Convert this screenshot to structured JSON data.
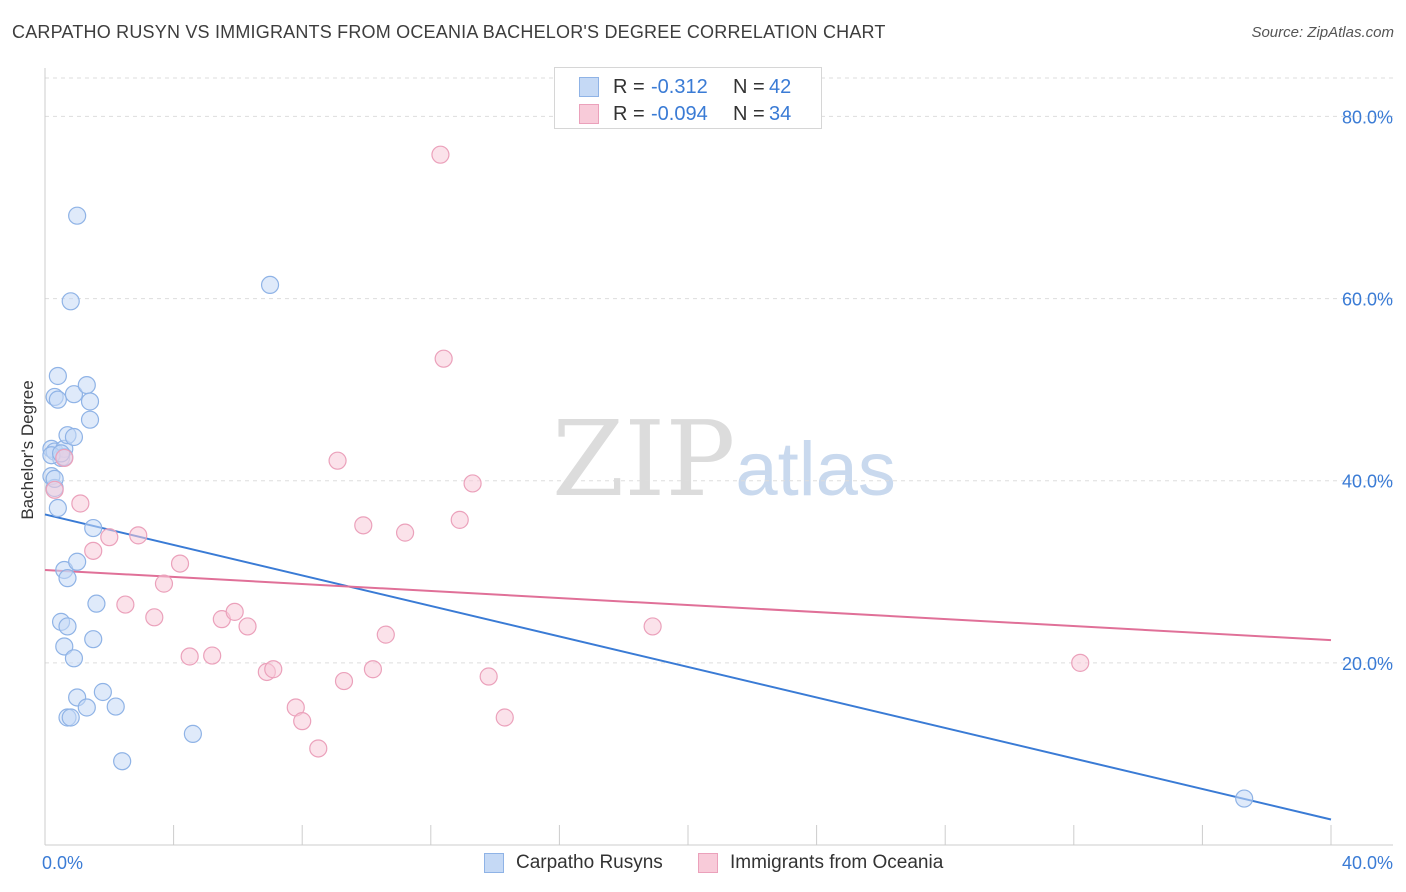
{
  "header": {
    "title": "CARPATHO RUSYN VS IMMIGRANTS FROM OCEANIA BACHELOR'S DEGREE CORRELATION CHART",
    "source": "Source: ZipAtlas.com"
  },
  "watermark": {
    "zip": "ZIP",
    "atlas": "atlas"
  },
  "legend_top": {
    "rows": [
      {
        "r_label": "R =",
        "r_value": "-0.312",
        "n_label": "N =",
        "n_value": "42"
      },
      {
        "r_label": "R =",
        "r_value": "-0.094",
        "n_label": "N =",
        "n_value": "34"
      }
    ]
  },
  "chart_data": {
    "type": "scatter",
    "title": "CARPATHO RUSYN VS IMMIGRANTS FROM OCEANIA BACHELOR'S DEGREE CORRELATION CHART",
    "xlabel": "",
    "ylabel": "Bachelor's Degree",
    "xlim": [
      0,
      40
    ],
    "ylim": [
      0,
      84
    ],
    "x_tick_labels": [
      "0.0%",
      "40.0%"
    ],
    "y_ticks": [
      20,
      40,
      60,
      80
    ],
    "y_tick_labels": [
      "20.0%",
      "40.0%",
      "60.0%",
      "80.0%"
    ],
    "grid": true,
    "legend_position": "bottom",
    "colors": {
      "blue": "#3a7bd5",
      "blue_fill": "#c5d9f5",
      "pink": "#e07098",
      "pink_fill": "#f8cbd9"
    },
    "series": [
      {
        "name": "Carpatho Rusyns",
        "color": "#3a7bd5",
        "trend": {
          "x": [
            0,
            40
          ],
          "y": [
            36.3,
            2.8
          ]
        },
        "points": [
          [
            0.2,
            43.5
          ],
          [
            0.2,
            40.5
          ],
          [
            0.3,
            43.2
          ],
          [
            0.3,
            39.2
          ],
          [
            0.3,
            49.2
          ],
          [
            0.4,
            37.0
          ],
          [
            0.4,
            48.9
          ],
          [
            0.4,
            51.5
          ],
          [
            0.5,
            42.5
          ],
          [
            0.5,
            24.5
          ],
          [
            0.6,
            43.5
          ],
          [
            0.6,
            42.6
          ],
          [
            0.6,
            21.8
          ],
          [
            0.6,
            30.2
          ],
          [
            0.7,
            45.0
          ],
          [
            0.7,
            24.0
          ],
          [
            0.7,
            14.0
          ],
          [
            0.7,
            29.3
          ],
          [
            0.8,
            59.7
          ],
          [
            0.8,
            14.0
          ],
          [
            0.9,
            49.5
          ],
          [
            0.9,
            20.5
          ],
          [
            0.9,
            44.8
          ],
          [
            1.0,
            69.1
          ],
          [
            1.0,
            16.2
          ],
          [
            1.0,
            31.1
          ],
          [
            1.3,
            50.5
          ],
          [
            1.3,
            15.1
          ],
          [
            1.4,
            48.7
          ],
          [
            1.4,
            46.7
          ],
          [
            1.5,
            34.8
          ],
          [
            1.5,
            22.6
          ],
          [
            1.6,
            26.5
          ],
          [
            1.8,
            16.8
          ],
          [
            2.2,
            15.2
          ],
          [
            2.4,
            9.2
          ],
          [
            4.6,
            12.2
          ],
          [
            7.0,
            61.5
          ],
          [
            37.3,
            5.1
          ],
          [
            0.3,
            40.2
          ],
          [
            0.2,
            42.8
          ],
          [
            0.5,
            43.0
          ]
        ]
      },
      {
        "name": "Immigrants from Oceania",
        "color": "#e07098",
        "trend": {
          "x": [
            0,
            40
          ],
          "y": [
            30.2,
            22.5
          ]
        },
        "points": [
          [
            0.3,
            39.0
          ],
          [
            0.6,
            42.5
          ],
          [
            1.1,
            37.5
          ],
          [
            1.5,
            32.3
          ],
          [
            2.0,
            33.8
          ],
          [
            2.5,
            26.4
          ],
          [
            2.9,
            34.0
          ],
          [
            3.4,
            25.0
          ],
          [
            3.7,
            28.7
          ],
          [
            4.2,
            30.9
          ],
          [
            4.5,
            20.7
          ],
          [
            5.2,
            20.8
          ],
          [
            5.5,
            24.8
          ],
          [
            5.9,
            25.6
          ],
          [
            6.3,
            24.0
          ],
          [
            6.9,
            19.0
          ],
          [
            7.1,
            19.3
          ],
          [
            7.8,
            15.1
          ],
          [
            8.0,
            13.6
          ],
          [
            8.5,
            10.6
          ],
          [
            9.1,
            42.2
          ],
          [
            9.3,
            18.0
          ],
          [
            9.9,
            35.1
          ],
          [
            10.2,
            19.3
          ],
          [
            10.6,
            23.1
          ],
          [
            11.2,
            34.3
          ],
          [
            12.3,
            75.8
          ],
          [
            12.4,
            53.4
          ],
          [
            12.9,
            35.7
          ],
          [
            13.3,
            39.7
          ],
          [
            13.8,
            18.5
          ],
          [
            14.3,
            14.0
          ],
          [
            18.9,
            24.0
          ],
          [
            32.2,
            20.0
          ]
        ]
      }
    ]
  },
  "legend_bottom": {
    "items": [
      {
        "label": "Carpatho Rusyns"
      },
      {
        "label": "Immigrants from Oceania"
      }
    ]
  }
}
